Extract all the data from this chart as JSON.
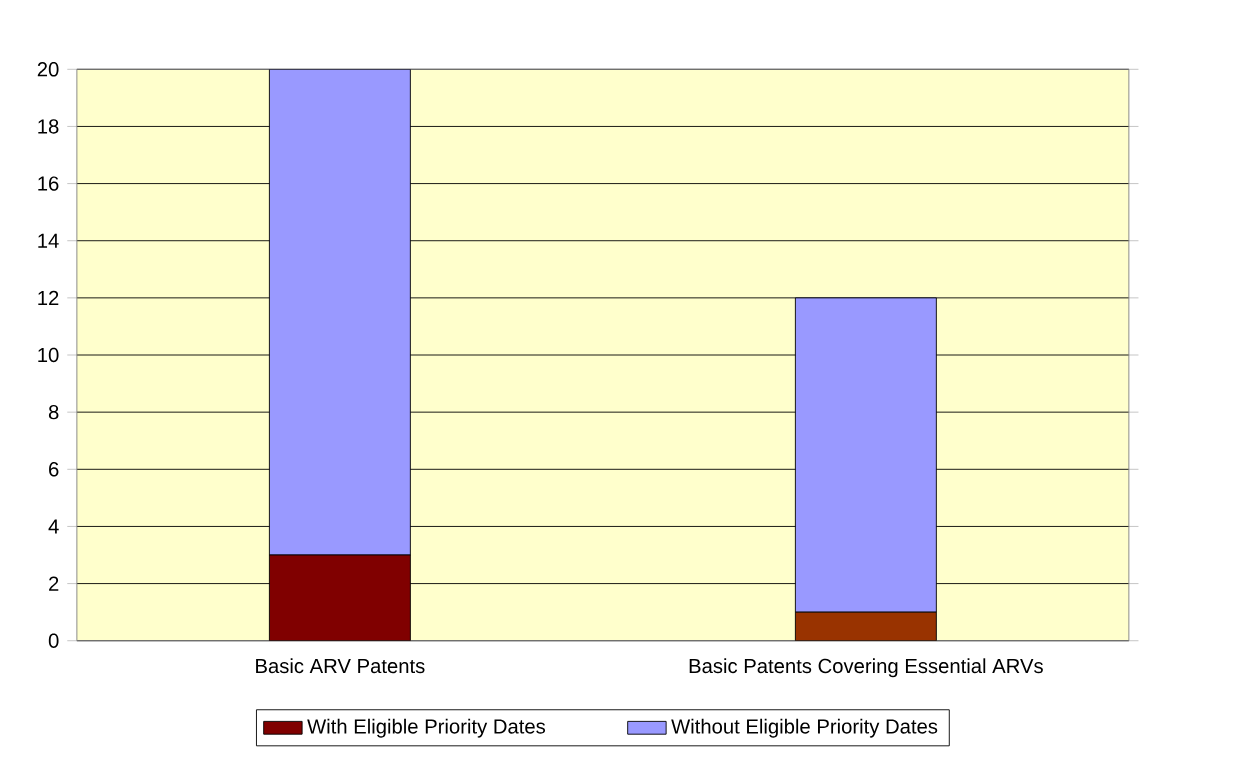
{
  "chart_data": {
    "type": "bar",
    "stacked": true,
    "categories": [
      "Basic ARV Patents",
      "Basic Patents Covering Essential ARVs"
    ],
    "series": [
      {
        "name": "With Eligible Priority Dates",
        "color": "#800000",
        "colors": [
          "#800000",
          "#993300"
        ],
        "values": [
          3,
          1
        ]
      },
      {
        "name": "Without Eligible Priority Dates",
        "color": "#9999ff",
        "values": [
          17,
          11
        ]
      }
    ],
    "ylim": [
      0,
      20
    ],
    "yticks": [
      0,
      2,
      4,
      6,
      8,
      10,
      12,
      14,
      16,
      18,
      20
    ],
    "grid": "y",
    "legend": "bottom"
  }
}
